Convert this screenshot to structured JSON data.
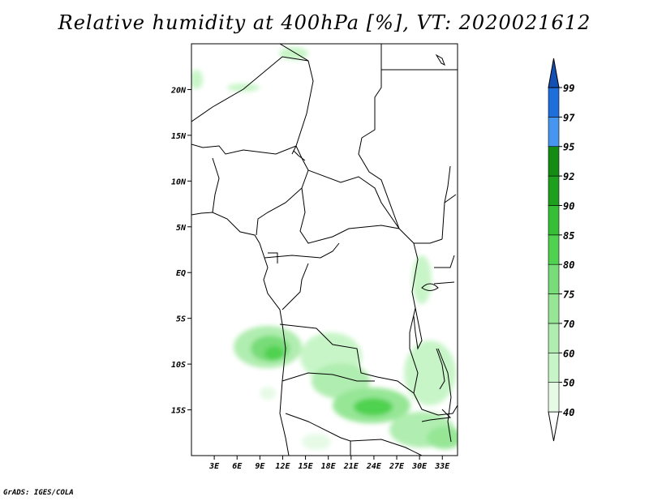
{
  "title": "Relative humidity at 400hPa [%], VT: 2020021612",
  "credit": "GrADS: IGES/COLA",
  "map": {
    "lon_range": [
      0,
      35
    ],
    "lat_range": [
      -20,
      25
    ],
    "lat_ticks": [
      "20N",
      "15N",
      "10N",
      "5N",
      "EQ",
      "5S",
      "10S",
      "15S"
    ],
    "lon_ticks": [
      "3E",
      "6E",
      "9E",
      "12E",
      "15E",
      "18E",
      "21E",
      "24E",
      "27E",
      "30E",
      "33E"
    ]
  },
  "colorbar": {
    "labels": [
      "40",
      "50",
      "60",
      "70",
      "75",
      "80",
      "85",
      "90",
      "92",
      "95",
      "97",
      "99"
    ],
    "colors": [
      "#ffffff",
      "#e6fae6",
      "#c8f5c8",
      "#b0edb0",
      "#96e696",
      "#78dc78",
      "#50d250",
      "#37be37",
      "#1ea01e",
      "#148c14",
      "#4696f0",
      "#1e6edc",
      "#1450b4"
    ]
  }
}
